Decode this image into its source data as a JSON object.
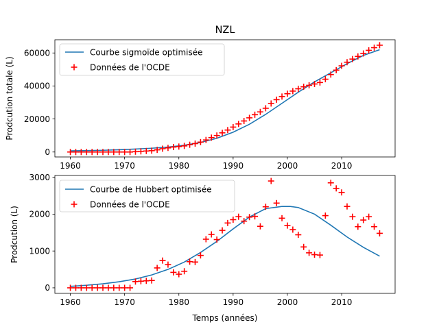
{
  "chart_data": [
    {
      "type": "line",
      "title": "NZL",
      "xlabel": "",
      "ylabel": "Prodcution totale (L)",
      "xlim": [
        1957.15,
        2019.85
      ],
      "ylim": [
        -3000,
        68000
      ],
      "xticks": [
        1960,
        1970,
        1980,
        1990,
        2000,
        2010
      ],
      "yticks": [
        0,
        20000,
        40000,
        60000
      ],
      "legend_position": "upper-left",
      "series": [
        {
          "name": "Courbe sigmoïde optimisée",
          "kind": "line",
          "color": "#1f77b4",
          "x": [
            1960,
            1963,
            1966,
            1969,
            1972,
            1975,
            1978,
            1981,
            1984,
            1987,
            1990,
            1993,
            1996,
            1999,
            2002,
            2005,
            2008,
            2011,
            2014,
            2017
          ],
          "y": [
            700,
            850,
            1050,
            1400,
            1800,
            2300,
            3000,
            4100,
            5800,
            8300,
            12000,
            16800,
            22800,
            29500,
            36200,
            42500,
            48000,
            53500,
            58500,
            62000
          ]
        },
        {
          "name": "Données de l'OCDE",
          "kind": "scatter",
          "color": "#ff0000",
          "x": [
            1960,
            1961,
            1962,
            1963,
            1964,
            1965,
            1966,
            1967,
            1968,
            1969,
            1970,
            1971,
            1972,
            1973,
            1974,
            1975,
            1976,
            1977,
            1978,
            1979,
            1980,
            1981,
            1982,
            1983,
            1984,
            1985,
            1986,
            1987,
            1988,
            1989,
            1990,
            1991,
            1992,
            1993,
            1994,
            1995,
            1996,
            1997,
            1998,
            1999,
            2000,
            2001,
            2002,
            2003,
            2004,
            2005,
            2006,
            2007,
            2008,
            2009,
            2010,
            2011,
            2012,
            2013,
            2014,
            2015,
            2016,
            2017
          ],
          "y": [
            0,
            0,
            0,
            0,
            0,
            0,
            0,
            0,
            0,
            0,
            0,
            0,
            200,
            400,
            600,
            800,
            1300,
            2000,
            2500,
            3000,
            3300,
            3700,
            4400,
            5100,
            6000,
            7300,
            8700,
            10000,
            11600,
            13300,
            15100,
            17000,
            18800,
            20700,
            22600,
            24300,
            26500,
            29400,
            31700,
            33600,
            35300,
            36900,
            38300,
            39500,
            40400,
            41200,
            42100,
            44100,
            46900,
            49600,
            52200,
            54400,
            56300,
            57900,
            59700,
            61600,
            63200,
            64700
          ]
        }
      ]
    },
    {
      "type": "line",
      "title": "",
      "xlabel": "Temps (années)",
      "ylabel": "Prodcution (L)",
      "xlim": [
        1957.15,
        2019.85
      ],
      "ylim": [
        -150,
        3050
      ],
      "xticks": [
        1960,
        1970,
        1980,
        1990,
        2000,
        2010
      ],
      "yticks": [
        0,
        1000,
        2000,
        3000
      ],
      "legend_position": "upper-left",
      "series": [
        {
          "name": "Courbe de Hubbert optimisée",
          "kind": "line",
          "color": "#1f77b4",
          "x": [
            1960,
            1963,
            1966,
            1969,
            1972,
            1975,
            1978,
            1981,
            1984,
            1987,
            1990,
            1993,
            1996,
            1999,
            2000.5,
            2002,
            2005,
            2008,
            2011,
            2014,
            2017
          ],
          "y": [
            40,
            70,
            110,
            165,
            240,
            350,
            500,
            700,
            960,
            1260,
            1600,
            1920,
            2150,
            2210,
            2210,
            2180,
            2000,
            1700,
            1380,
            1100,
            860
          ]
        },
        {
          "name": "Données de l'OCDE",
          "kind": "scatter",
          "color": "#ff0000",
          "x": [
            1960,
            1961,
            1962,
            1963,
            1964,
            1965,
            1966,
            1967,
            1968,
            1969,
            1970,
            1971,
            1972,
            1973,
            1974,
            1975,
            1976,
            1977,
            1978,
            1979,
            1980,
            1981,
            1982,
            1983,
            1984,
            1985,
            1986,
            1987,
            1988,
            1989,
            1990,
            1991,
            1992,
            1993,
            1994,
            1995,
            1996,
            1997,
            1998,
            1999,
            2000,
            2001,
            2002,
            2003,
            2004,
            2005,
            2006,
            2007,
            2008,
            2009,
            2010,
            2011,
            2012,
            2013,
            2014,
            2015,
            2016,
            2017
          ],
          "y": [
            0,
            0,
            0,
            0,
            0,
            0,
            0,
            0,
            0,
            0,
            0,
            0,
            170,
            180,
            190,
            200,
            540,
            740,
            630,
            420,
            370,
            450,
            710,
            700,
            880,
            1320,
            1450,
            1310,
            1560,
            1760,
            1850,
            1930,
            1810,
            1920,
            1940,
            1670,
            2200,
            2900,
            2300,
            1890,
            1690,
            1580,
            1440,
            1110,
            950,
            900,
            890,
            1960,
            2850,
            2700,
            2590,
            2210,
            1930,
            1660,
            1840,
            1930,
            1660,
            1480
          ]
        }
      ]
    }
  ]
}
